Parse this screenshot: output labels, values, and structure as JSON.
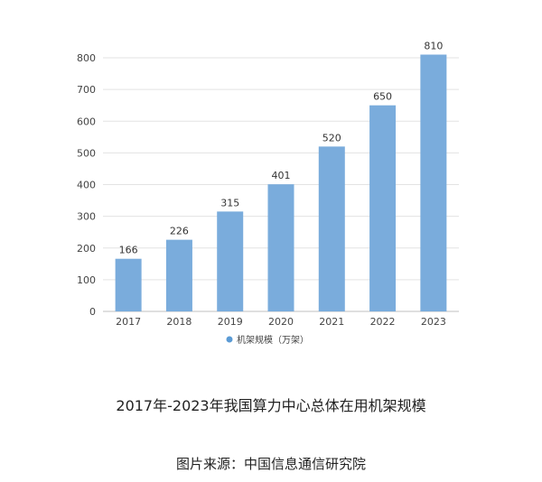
{
  "chart_data": {
    "type": "bar",
    "categories": [
      "2017",
      "2018",
      "2019",
      "2020",
      "2021",
      "2022",
      "2023"
    ],
    "series": [
      {
        "name": "机架规模（万架）",
        "values": [
          166,
          226,
          315,
          401,
          520,
          650,
          810
        ]
      }
    ],
    "y_ticks": [
      "0",
      "100",
      "200",
      "300",
      "400",
      "500",
      "600",
      "700",
      "800"
    ],
    "ylim": [
      0,
      800
    ],
    "grid": true,
    "legend_position": "bottom",
    "bar_color": "#7aacdc",
    "legend_marker_color": "#5b9bd5"
  },
  "caption": {
    "title": "2017年-2023年我国算力中心总体在用机架规模",
    "source": "图片来源：中国信息通信研究院"
  }
}
